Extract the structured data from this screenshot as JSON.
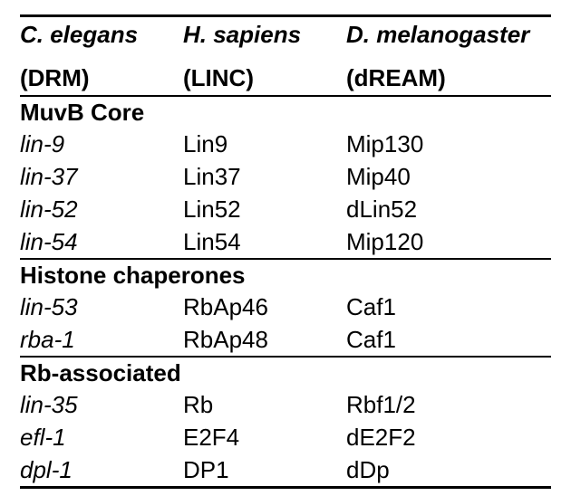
{
  "table": {
    "type": "table",
    "background_color": "#ffffff",
    "text_color": "#000000",
    "rule_color": "#000000",
    "font_family": "Helvetica, Arial, sans-serif",
    "base_fontsize_pt": 20,
    "columns": [
      {
        "species": "C. elegans",
        "complex": "(DRM)"
      },
      {
        "species": "H. sapiens",
        "complex": "(LINC)"
      },
      {
        "species": "D. melanogaster",
        "complex": "(dREAM)"
      }
    ],
    "sections": [
      {
        "title": "MuvB Core",
        "rows": [
          {
            "c1": "lin-9",
            "c2": "Lin9",
            "c3": "Mip130"
          },
          {
            "c1": "lin-37",
            "c2": "Lin37",
            "c3": "Mip40"
          },
          {
            "c1": "lin-52",
            "c2": "Lin52",
            "c3": "dLin52"
          },
          {
            "c1": "lin-54",
            "c2": "Lin54",
            "c3": "Mip120"
          }
        ]
      },
      {
        "title": "Histone chaperones",
        "rows": [
          {
            "c1": "lin-53",
            "c2": "RbAp46",
            "c3": "Caf1"
          },
          {
            "c1": "rba-1",
            "c2": "RbAp48",
            "c3": "Caf1"
          }
        ]
      },
      {
        "title": "Rb-associated",
        "rows": [
          {
            "c1": "lin-35",
            "c2": "Rb",
            "c3": "Rbf1/2"
          },
          {
            "c1": "efl-1",
            "c2": "E2F4",
            "c3": "dE2F2"
          },
          {
            "c1": "dpl-1",
            "c2": "DP1",
            "c3": "dDp"
          }
        ]
      }
    ]
  }
}
